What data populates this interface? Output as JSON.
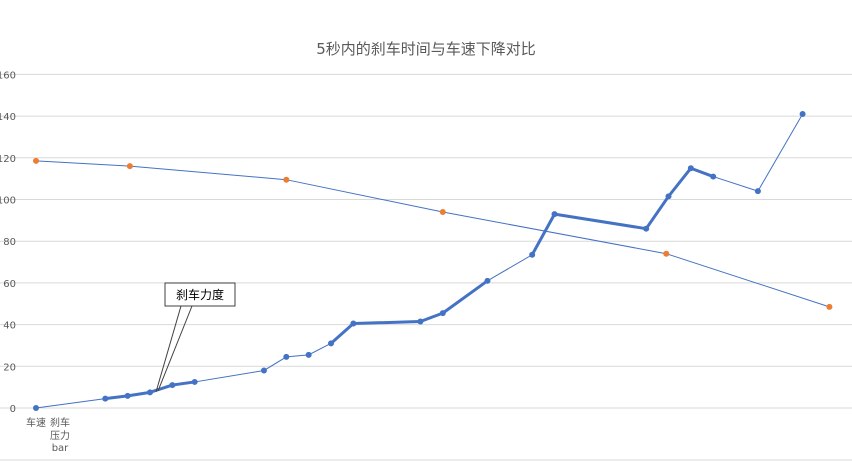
{
  "chart_data": {
    "type": "line",
    "title": "5秒内的刹车时间与车速下降对比",
    "xlabel": "",
    "ylabel": "",
    "ylim": [
      0,
      160
    ],
    "yticks": [
      0,
      20,
      40,
      60,
      80,
      100,
      120,
      140,
      160
    ],
    "grid": true,
    "legend": "none",
    "category_labels": [
      "车速",
      "刹车",
      "压力",
      "bar"
    ],
    "series": [
      {
        "color": "#ED7D31",
        "line_color": "#4472C4",
        "points": [
          {
            "x": 0,
            "y": 118.5
          },
          {
            "x": 4.2,
            "y": 116
          },
          {
            "x": 11.2,
            "y": 109.5
          },
          {
            "x": 18.2,
            "y": 94
          },
          {
            "x": 28.2,
            "y": 74
          },
          {
            "x": 35.5,
            "y": 48.5
          }
        ]
      },
      {
        "color": "#4472C4",
        "points": [
          {
            "x": 0,
            "y": 0
          },
          {
            "x": 3.1,
            "y": 4.5
          },
          {
            "x": 4.1,
            "y": 5.8
          },
          {
            "x": 5.1,
            "y": 7.5
          },
          {
            "x": 6.1,
            "y": 11
          },
          {
            "x": 7.1,
            "y": 12.5
          },
          {
            "x": 10.2,
            "y": 18
          },
          {
            "x": 11.2,
            "y": 24.5
          },
          {
            "x": 12.2,
            "y": 25.5
          },
          {
            "x": 13.2,
            "y": 31
          },
          {
            "x": 14.2,
            "y": 40.5
          },
          {
            "x": 17.2,
            "y": 41.5
          },
          {
            "x": 18.2,
            "y": 45.5
          },
          {
            "x": 20.2,
            "y": 61
          },
          {
            "x": 22.2,
            "y": 73.5
          },
          {
            "x": 23.2,
            "y": 93
          },
          {
            "x": 27.3,
            "y": 86
          },
          {
            "x": 28.3,
            "y": 101.5
          },
          {
            "x": 29.3,
            "y": 115
          },
          {
            "x": 30.3,
            "y": 111
          },
          {
            "x": 32.3,
            "y": 104
          },
          {
            "x": 34.3,
            "y": 141
          }
        ],
        "thick_segments": [
          [
            1,
            3
          ],
          [
            3,
            5
          ],
          [
            9,
            13
          ],
          [
            14,
            16
          ],
          [
            16,
            19
          ]
        ]
      }
    ],
    "annotations": [
      {
        "text": "刹车力度",
        "points_to_x": 5.1,
        "points_to_y": 7.5
      }
    ]
  }
}
